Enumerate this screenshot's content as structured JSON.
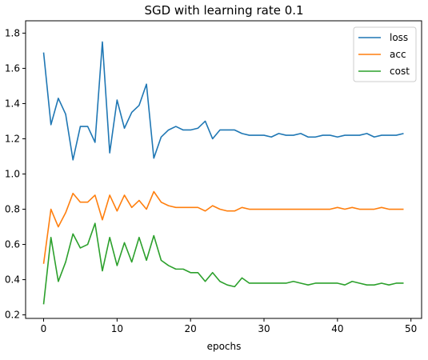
{
  "chart_data": {
    "type": "line",
    "title": "SGD with learning rate 0.1",
    "xlabel": "epochs",
    "ylabel": "",
    "xlim": [
      -2.45,
      51.45
    ],
    "ylim": [
      0.18,
      1.87
    ],
    "xticks": [
      0,
      10,
      20,
      30,
      40,
      50
    ],
    "yticks": [
      0.2,
      0.4,
      0.6,
      0.8,
      1.0,
      1.2,
      1.4,
      1.6,
      1.8
    ],
    "ytick_labels": [
      "0.2",
      "0.4",
      "0.6",
      "0.8",
      "1.0",
      "1.2",
      "1.4",
      "1.6",
      "1.8"
    ],
    "grid": false,
    "legend_position": "top-right",
    "x": [
      0,
      1,
      2,
      3,
      4,
      5,
      6,
      7,
      8,
      9,
      10,
      11,
      12,
      13,
      14,
      15,
      16,
      17,
      18,
      19,
      20,
      21,
      22,
      23,
      24,
      25,
      26,
      27,
      28,
      29,
      30,
      31,
      32,
      33,
      34,
      35,
      36,
      37,
      38,
      39,
      40,
      41,
      42,
      43,
      44,
      45,
      46,
      47,
      48,
      49
    ],
    "series": [
      {
        "name": "loss",
        "color": "#1f77b4",
        "values": [
          1.69,
          1.28,
          1.43,
          1.34,
          1.08,
          1.27,
          1.27,
          1.18,
          1.75,
          1.12,
          1.42,
          1.26,
          1.35,
          1.39,
          1.51,
          1.09,
          1.21,
          1.25,
          1.27,
          1.25,
          1.25,
          1.26,
          1.3,
          1.2,
          1.25,
          1.25,
          1.25,
          1.23,
          1.22,
          1.22,
          1.22,
          1.21,
          1.23,
          1.22,
          1.22,
          1.23,
          1.21,
          1.21,
          1.22,
          1.22,
          1.21,
          1.22,
          1.22,
          1.22,
          1.23,
          1.21,
          1.22,
          1.22,
          1.22,
          1.23
        ]
      },
      {
        "name": "acc",
        "color": "#ff7f0e",
        "values": [
          0.49,
          0.8,
          0.7,
          0.78,
          0.89,
          0.84,
          0.84,
          0.88,
          0.74,
          0.88,
          0.79,
          0.88,
          0.81,
          0.85,
          0.8,
          0.9,
          0.84,
          0.82,
          0.81,
          0.81,
          0.81,
          0.81,
          0.79,
          0.82,
          0.8,
          0.79,
          0.79,
          0.81,
          0.8,
          0.8,
          0.8,
          0.8,
          0.8,
          0.8,
          0.8,
          0.8,
          0.8,
          0.8,
          0.8,
          0.8,
          0.81,
          0.8,
          0.81,
          0.8,
          0.8,
          0.8,
          0.81,
          0.8,
          0.8,
          0.8
        ]
      },
      {
        "name": "cost",
        "color": "#2ca02c",
        "values": [
          0.26,
          0.64,
          0.39,
          0.5,
          0.66,
          0.58,
          0.6,
          0.72,
          0.45,
          0.64,
          0.48,
          0.61,
          0.5,
          0.64,
          0.51,
          0.65,
          0.51,
          0.48,
          0.46,
          0.46,
          0.44,
          0.44,
          0.39,
          0.44,
          0.39,
          0.37,
          0.36,
          0.41,
          0.38,
          0.38,
          0.38,
          0.38,
          0.38,
          0.38,
          0.39,
          0.38,
          0.37,
          0.38,
          0.38,
          0.38,
          0.38,
          0.37,
          0.39,
          0.38,
          0.37,
          0.37,
          0.38,
          0.37,
          0.38,
          0.38
        ]
      }
    ]
  }
}
